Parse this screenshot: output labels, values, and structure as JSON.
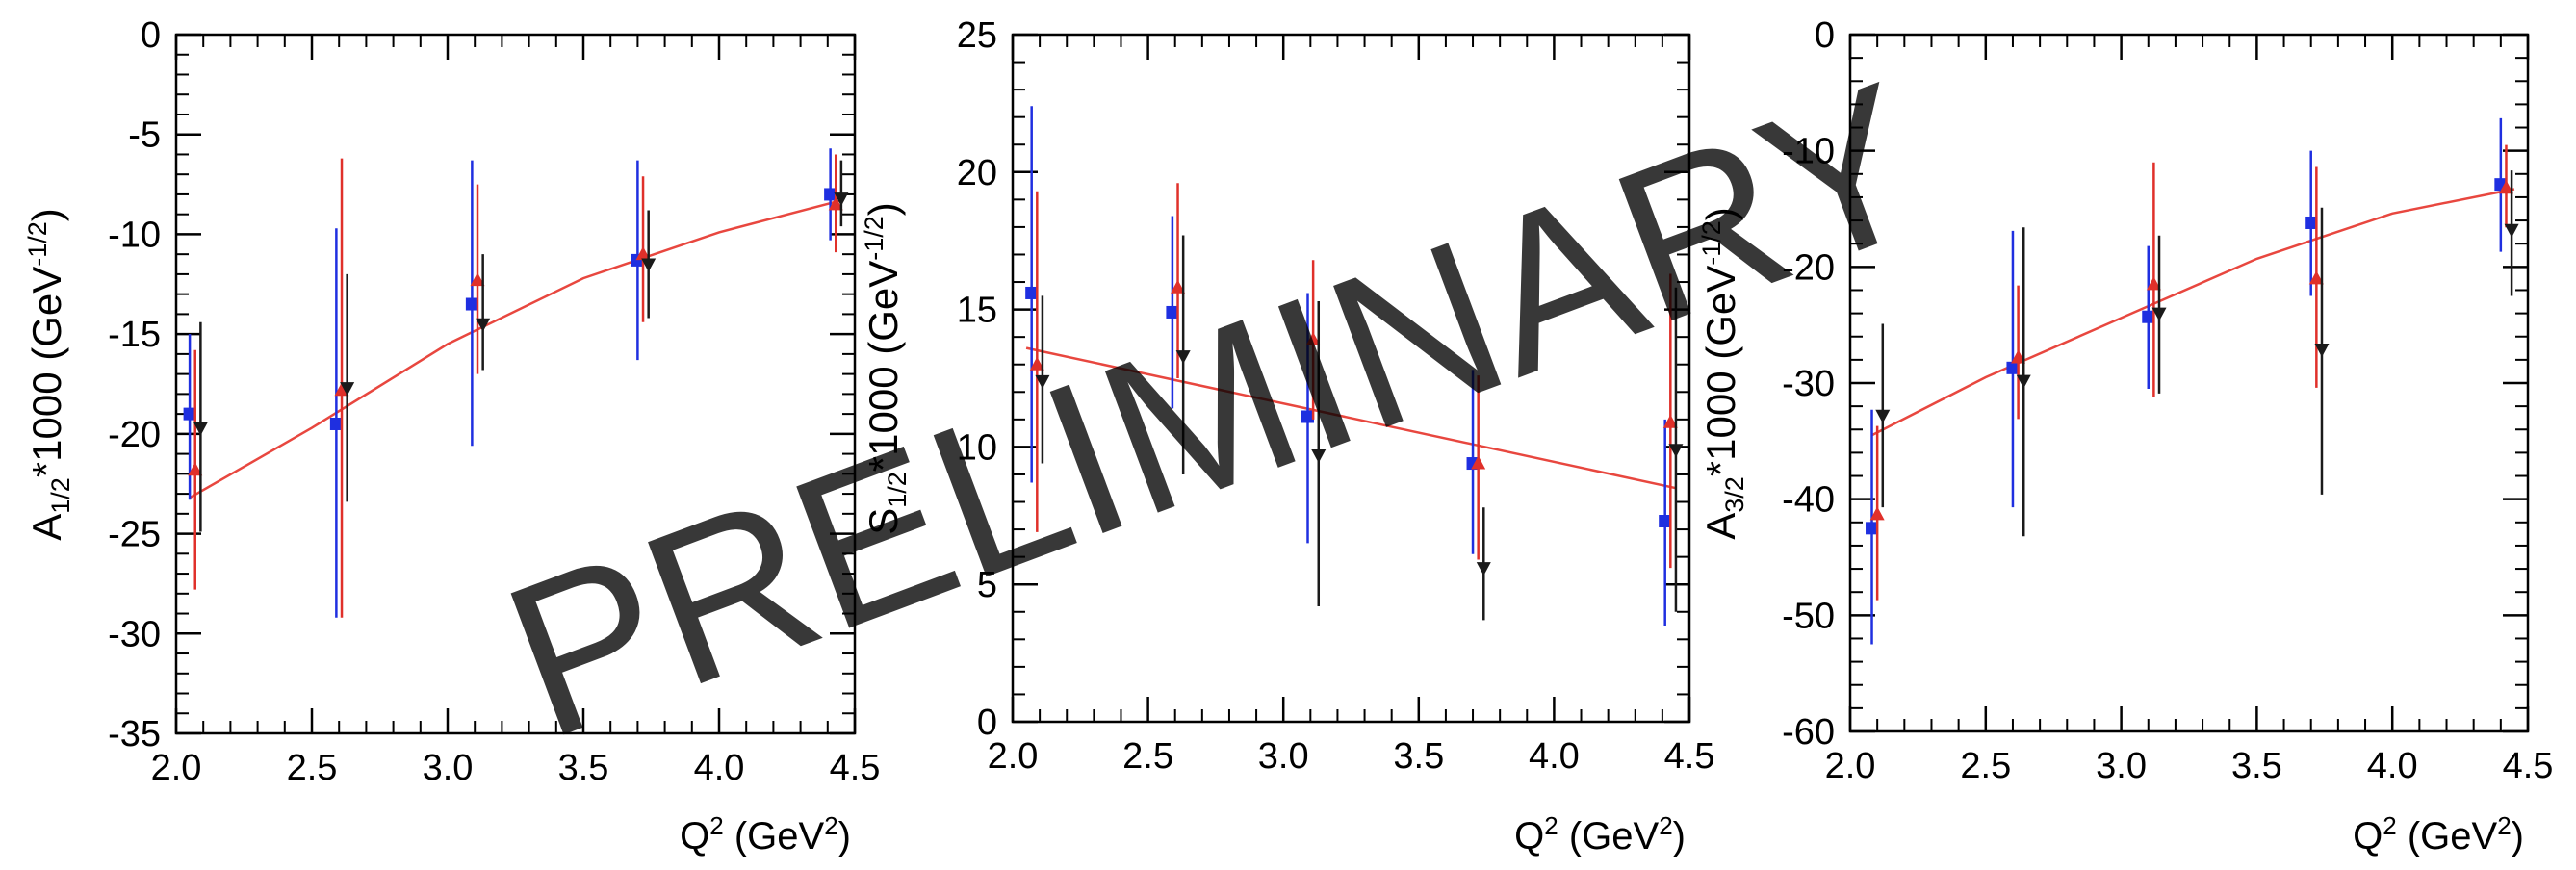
{
  "watermark": "PRELIMINARY",
  "colors": {
    "blue": "#1f2fe0",
    "red": "#e0302a",
    "black": "#1a1a1a",
    "fit": "#e8473f",
    "watermark": "#c8c8c8"
  },
  "chart_data": [
    {
      "type": "scatter",
      "ylabel_main": "A",
      "ylabel_sub": "1/2",
      "ylabel_rest": "*1000 (GeV",
      "ylabel_sup": "-1/2",
      "ylabel_close": ")",
      "xlabel_main": "Q",
      "xlabel_sup1": "2",
      "xlabel_mid": " (GeV",
      "xlabel_sup2": "2",
      "xlabel_close": ")",
      "xlim": [
        2.0,
        4.5
      ],
      "ylim": [
        -35,
        0
      ],
      "xticks": [
        "2.0",
        "2.5",
        "3.0",
        "3.5",
        "4.0",
        "4.5"
      ],
      "xtick_values": [
        2.0,
        2.5,
        3.0,
        3.5,
        4.0,
        4.5
      ],
      "yticks": [
        "-35",
        "-30",
        "-25",
        "-20",
        "-15",
        "-10",
        "-5",
        "0"
      ],
      "ytick_values": [
        -35,
        -30,
        -25,
        -20,
        -15,
        -10,
        -5,
        0
      ],
      "series": [
        {
          "name": "blue squares",
          "color": "blue",
          "marker": "square",
          "x": [
            2.05,
            2.59,
            3.09,
            3.7,
            4.41
          ],
          "y": [
            -19.0,
            -19.5,
            -13.5,
            -11.3,
            -8.0
          ],
          "lo": [
            -23.3,
            -29.2,
            -20.6,
            -16.3,
            -10.3
          ],
          "hi": [
            -15.0,
            -9.7,
            -6.3,
            -6.3,
            -5.7
          ]
        },
        {
          "name": "red triangles",
          "color": "red",
          "marker": "triangle",
          "x": [
            2.07,
            2.61,
            3.11,
            3.72,
            4.43
          ],
          "y": [
            -21.8,
            -17.8,
            -12.3,
            -11.0,
            -8.5
          ],
          "lo": [
            -27.8,
            -29.2,
            -17.0,
            -14.4,
            -10.9
          ],
          "hi": [
            -15.8,
            -6.2,
            -7.5,
            -7.1,
            -6.0
          ]
        },
        {
          "name": "black inverted triangles",
          "color": "black",
          "marker": "triangle-down",
          "x": [
            2.09,
            2.63,
            3.13,
            3.74,
            4.45
          ],
          "y": [
            -19.7,
            -17.7,
            -14.5,
            -11.5,
            -8.2
          ],
          "lo": [
            -24.9,
            -23.4,
            -16.8,
            -14.2,
            -9.6
          ],
          "hi": [
            -14.4,
            -12.0,
            -11.0,
            -8.8,
            -6.3
          ]
        }
      ],
      "fit": {
        "x": [
          2.05,
          2.5,
          3.0,
          3.5,
          4.0,
          4.45
        ],
        "y": [
          -23.2,
          -19.7,
          -15.5,
          -12.2,
          -9.9,
          -8.3
        ]
      }
    },
    {
      "type": "scatter",
      "ylabel_main": "S",
      "ylabel_sub": "1/2",
      "ylabel_rest": "*1000 (GeV",
      "ylabel_sup": "-1/2",
      "ylabel_close": ")",
      "xlabel_main": "Q",
      "xlabel_sup1": "2",
      "xlabel_mid": " (GeV",
      "xlabel_sup2": "2",
      "xlabel_close": ")",
      "xlim": [
        2.0,
        4.5
      ],
      "ylim": [
        0,
        25
      ],
      "xticks": [
        "2.0",
        "2.5",
        "3.0",
        "3.5",
        "4.0",
        "4.5"
      ],
      "xtick_values": [
        2.0,
        2.5,
        3.0,
        3.5,
        4.0,
        4.5
      ],
      "yticks": [
        "0",
        "5",
        "10",
        "15",
        "20",
        "25"
      ],
      "ytick_values": [
        0,
        5,
        10,
        15,
        20,
        25
      ],
      "series": [
        {
          "name": "blue squares",
          "color": "blue",
          "marker": "square",
          "x": [
            2.07,
            2.59,
            3.09,
            3.7,
            4.41
          ],
          "y": [
            15.6,
            14.9,
            11.1,
            9.4,
            7.3
          ],
          "lo": [
            8.7,
            11.4,
            6.5,
            6.1,
            3.5
          ],
          "hi": [
            22.4,
            18.4,
            15.6,
            12.8,
            11.0
          ]
        },
        {
          "name": "red triangles",
          "color": "red",
          "marker": "triangle",
          "x": [
            2.09,
            2.61,
            3.11,
            3.72,
            4.43
          ],
          "y": [
            13.0,
            15.8,
            13.9,
            9.4,
            10.9
          ],
          "lo": [
            6.9,
            12.5,
            11.0,
            5.9,
            5.6
          ],
          "hi": [
            19.3,
            19.6,
            16.8,
            12.6,
            16.3
          ]
        },
        {
          "name": "black inverted triangles",
          "color": "black",
          "marker": "triangle-down",
          "x": [
            2.11,
            2.63,
            3.13,
            3.74,
            4.45
          ],
          "y": [
            12.4,
            13.3,
            9.7,
            5.6,
            9.9
          ],
          "lo": [
            9.4,
            9.0,
            4.2,
            3.7,
            4.0
          ],
          "hi": [
            15.5,
            17.7,
            15.3,
            7.8,
            15.8
          ]
        }
      ],
      "fit": {
        "x": [
          2.05,
          4.45
        ],
        "y": [
          13.6,
          8.5
        ]
      }
    },
    {
      "type": "scatter",
      "ylabel_main": "A",
      "ylabel_sub": "3/2",
      "ylabel_rest": "*1000 (GeV",
      "ylabel_sup": "-1/2",
      "ylabel_close": ")",
      "xlabel_main": "Q",
      "xlabel_sup1": "2",
      "xlabel_mid": " (GeV",
      "xlabel_sup2": "2",
      "xlabel_close": ")",
      "xlim": [
        2.0,
        4.5
      ],
      "ylim": [
        -60,
        0
      ],
      "xticks": [
        "2.0",
        "2.5",
        "3.0",
        "3.5",
        "4.0",
        "4.5"
      ],
      "xtick_values": [
        2.0,
        2.5,
        3.0,
        3.5,
        4.0,
        4.5
      ],
      "yticks": [
        "-60",
        "-50",
        "-40",
        "-30",
        "-20",
        "-10",
        "0"
      ],
      "ytick_values": [
        -60,
        -50,
        -40,
        -30,
        -20,
        -10,
        0
      ],
      "series": [
        {
          "name": "blue squares",
          "color": "blue",
          "marker": "square",
          "x": [
            2.08,
            2.6,
            3.1,
            3.7,
            4.4
          ],
          "y": [
            -42.5,
            -28.7,
            -24.3,
            -16.2,
            -12.9
          ],
          "lo": [
            -52.5,
            -40.7,
            -30.5,
            -22.5,
            -18.7
          ],
          "hi": [
            -32.3,
            -16.9,
            -18.2,
            -10.0,
            -7.2
          ]
        },
        {
          "name": "red triangles",
          "color": "red",
          "marker": "triangle",
          "x": [
            2.1,
            2.62,
            3.12,
            3.72,
            4.42
          ],
          "y": [
            -41.3,
            -27.8,
            -21.5,
            -21.0,
            -13.2
          ],
          "lo": [
            -48.7,
            -33.1,
            -31.2,
            -30.4,
            -16.6
          ],
          "hi": [
            -33.7,
            -21.6,
            -11.0,
            -11.4,
            -9.5
          ]
        },
        {
          "name": "black inverted triangles",
          "color": "black",
          "marker": "triangle-down",
          "x": [
            2.12,
            2.64,
            3.14,
            3.74,
            4.44
          ],
          "y": [
            -32.8,
            -29.8,
            -24.0,
            -27.1,
            -16.8
          ],
          "lo": [
            -40.7,
            -43.2,
            -30.9,
            -39.6,
            -22.5
          ],
          "hi": [
            -24.9,
            -16.6,
            -17.3,
            -14.9,
            -11.7
          ]
        }
      ],
      "fit": {
        "x": [
          2.08,
          2.5,
          3.0,
          3.5,
          4.0,
          4.45
        ],
        "y": [
          -34.5,
          -29.5,
          -24.4,
          -19.3,
          -15.4,
          -13.3
        ]
      }
    }
  ]
}
